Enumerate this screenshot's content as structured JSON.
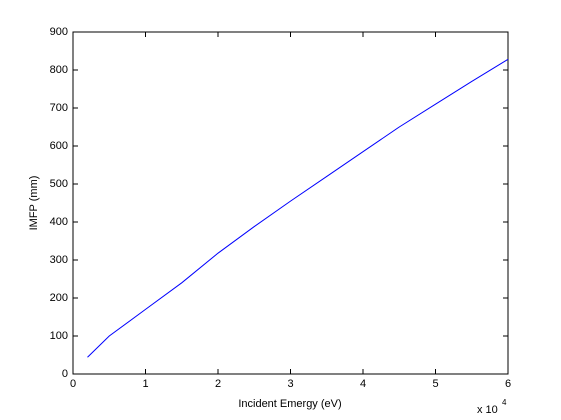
{
  "chart_data": {
    "type": "line",
    "x_label": "Incident Emergy (eV)",
    "y_label": "IMFP (mm)",
    "x_exponent_base": "x 10",
    "x_exponent": "4",
    "x": [
      0.2,
      0.5,
      1,
      1.5,
      2,
      2.5,
      3,
      3.5,
      4,
      4.5,
      5,
      5.5,
      6
    ],
    "series": [
      {
        "color": "#0000ff",
        "values": [
          44,
          100,
          170,
          240,
          318,
          388,
          455,
          520,
          585,
          650,
          710,
          770,
          828
        ]
      }
    ],
    "xlim": [
      0,
      6
    ],
    "xticks": [
      0,
      1,
      2,
      3,
      4,
      5,
      6
    ],
    "ylim": [
      0,
      900
    ],
    "yticks": [
      0,
      100,
      200,
      300,
      400,
      500,
      600,
      700,
      800,
      900
    ]
  }
}
